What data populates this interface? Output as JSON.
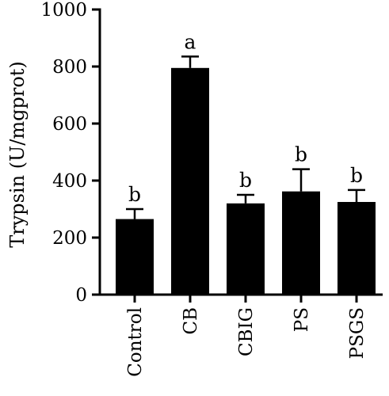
{
  "chart_data": {
    "type": "bar",
    "title": "",
    "xlabel": "",
    "ylabel": "Trypsin (U/mgprot)",
    "ylim": [
      0,
      1000
    ],
    "yticks": [
      0,
      200,
      400,
      600,
      800,
      1000
    ],
    "categories": [
      "Control",
      "CB",
      "CBIG",
      "PS",
      "PSGS"
    ],
    "values": [
      265,
      795,
      320,
      362,
      325
    ],
    "errors": [
      35,
      40,
      30,
      78,
      42
    ],
    "significance_letters": [
      "b",
      "a",
      "b",
      "b",
      "b"
    ],
    "bar_color": "#000000",
    "grid": false,
    "legend": "none"
  }
}
